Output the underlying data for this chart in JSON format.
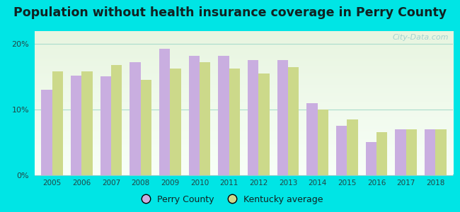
{
  "title": "Population without health insurance coverage in Perry County",
  "years": [
    2005,
    2006,
    2007,
    2008,
    2009,
    2010,
    2011,
    2012,
    2013,
    2014,
    2015,
    2016,
    2017,
    2018
  ],
  "perry_county": [
    13.0,
    15.2,
    15.0,
    17.2,
    19.2,
    18.2,
    18.2,
    17.5,
    17.5,
    11.0,
    7.5,
    5.0,
    7.0,
    7.0
  ],
  "kentucky_avg": [
    15.8,
    15.8,
    16.8,
    14.5,
    16.2,
    17.2,
    16.2,
    15.5,
    16.5,
    10.0,
    8.5,
    6.5,
    7.0,
    7.0
  ],
  "perry_color": "#c9aee0",
  "kentucky_color": "#ccd98a",
  "background_outer": "#00e5e5",
  "background_inner_top": "#e8f5e0",
  "background_inner_bottom": "#f8fff8",
  "ylim": [
    0,
    22
  ],
  "yticks": [
    0,
    10,
    20
  ],
  "ytick_labels": [
    "0%",
    "10%",
    "20%"
  ],
  "legend_perry": "Perry County",
  "legend_kentucky": "Kentucky average",
  "title_fontsize": 12.5,
  "watermark": "City-Data.com"
}
